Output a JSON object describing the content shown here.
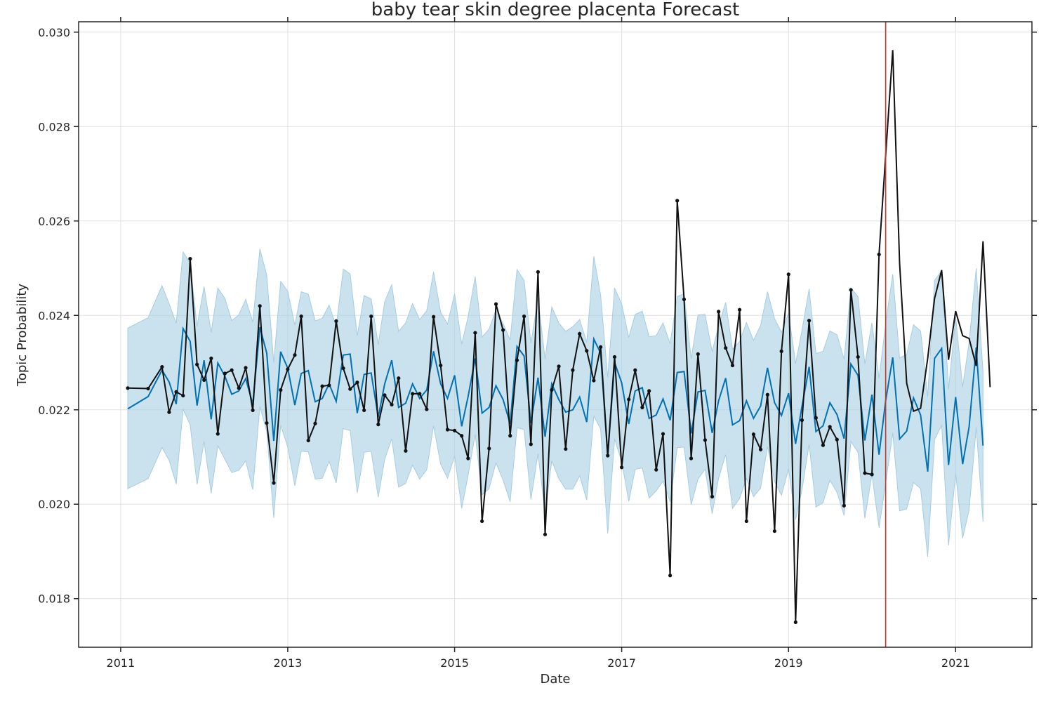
{
  "chart_data": {
    "type": "line",
    "title": "baby tear skin degree placenta Forecast",
    "xlabel": "Date",
    "ylabel": "Topic Probability",
    "x_ticks": [
      "2011",
      "2013",
      "2015",
      "2017",
      "2019",
      "2021"
    ],
    "y_ticks": [
      "0.018",
      "0.020",
      "0.022",
      "0.024",
      "0.026",
      "0.028",
      "0.030"
    ],
    "xlim": [
      "2010-07-01",
      "2021-12-01"
    ],
    "ylim": [
      0.01697,
      0.03022
    ],
    "grid": true,
    "changepoint_date": "2020-03-01",
    "colors": {
      "actual": "#111111",
      "forecast": "#0072b2",
      "interval": "#a6cde2",
      "changepoint": "#c0392b",
      "grid": "#e0e0e0",
      "frame": "#262626"
    },
    "series": [
      {
        "role": "actual",
        "style": "line+markers",
        "x": [
          "2011-02-01",
          "2011-05-01",
          "2011-07-01",
          "2011-08-01",
          "2011-09-01",
          "2011-10-01",
          "2011-11-01",
          "2011-12-01",
          "2012-01-01",
          "2012-02-01",
          "2012-03-01",
          "2012-04-01",
          "2012-05-01",
          "2012-06-01",
          "2012-07-01",
          "2012-08-01",
          "2012-09-01",
          "2012-10-01",
          "2012-11-01",
          "2012-12-01",
          "2013-01-01",
          "2013-02-01",
          "2013-03-01",
          "2013-04-01",
          "2013-05-01",
          "2013-06-01",
          "2013-07-01",
          "2013-08-01",
          "2013-09-01",
          "2013-10-01",
          "2013-11-01",
          "2013-12-01",
          "2014-01-01",
          "2014-02-01",
          "2014-03-01",
          "2014-04-01",
          "2014-05-01",
          "2014-06-01",
          "2014-07-01",
          "2014-08-01",
          "2014-09-01",
          "2014-10-01",
          "2014-11-01",
          "2014-12-01",
          "2015-01-01",
          "2015-02-01",
          "2015-03-01",
          "2015-04-01",
          "2015-05-01",
          "2015-06-01",
          "2015-07-01",
          "2015-08-01",
          "2015-09-01",
          "2015-10-01",
          "2015-11-01",
          "2015-12-01",
          "2016-01-01",
          "2016-02-01",
          "2016-03-01",
          "2016-04-01",
          "2016-05-01",
          "2016-06-01",
          "2016-07-01",
          "2016-08-01",
          "2016-09-01",
          "2016-10-01",
          "2016-11-01",
          "2016-12-01",
          "2017-01-01",
          "2017-02-01",
          "2017-03-01",
          "2017-04-01",
          "2017-05-01",
          "2017-06-01",
          "2017-07-01",
          "2017-08-01",
          "2017-09-01",
          "2017-10-01",
          "2017-11-01",
          "2017-12-01",
          "2018-01-01",
          "2018-02-01",
          "2018-03-01",
          "2018-04-01",
          "2018-05-01",
          "2018-06-01",
          "2018-07-01",
          "2018-08-01",
          "2018-09-01",
          "2018-10-01",
          "2018-11-01",
          "2018-12-01",
          "2019-01-01",
          "2019-02-01",
          "2019-03-01",
          "2019-04-01",
          "2019-05-01",
          "2019-06-01",
          "2019-07-01",
          "2019-08-01",
          "2019-09-01",
          "2019-10-01",
          "2019-11-01",
          "2019-12-01",
          "2020-01-01",
          "2020-02-01"
        ],
        "y": [
          0.02246,
          0.02245,
          0.02291,
          0.02195,
          0.02238,
          0.0223,
          0.0252,
          0.02296,
          0.02263,
          0.02309,
          0.02149,
          0.02277,
          0.02284,
          0.02246,
          0.02289,
          0.02199,
          0.0242,
          0.02172,
          0.02045,
          0.02242,
          0.02286,
          0.02316,
          0.02398,
          0.02135,
          0.02171,
          0.0225,
          0.02252,
          0.02388,
          0.02288,
          0.02244,
          0.02258,
          0.02199,
          0.02398,
          0.02169,
          0.02231,
          0.02211,
          0.02267,
          0.02113,
          0.02234,
          0.02234,
          0.02201,
          0.02397,
          0.02294,
          0.02158,
          0.02156,
          0.02145,
          0.02097,
          0.02363,
          0.01964,
          0.02118,
          0.02424,
          0.02369,
          0.02145,
          0.02305,
          0.02398,
          0.02127,
          0.02492,
          0.01936,
          0.02242,
          0.02292,
          0.02117,
          0.02284,
          0.02361,
          0.02325,
          0.02262,
          0.02333,
          0.02103,
          0.02312,
          0.02078,
          0.02222,
          0.02284,
          0.02205,
          0.0224,
          0.02073,
          0.02149,
          0.01849,
          0.02643,
          0.02434,
          0.02097,
          0.02318,
          0.02136,
          0.02016,
          0.02408,
          0.02331,
          0.02294,
          0.02412,
          0.01964,
          0.02148,
          0.02116,
          0.02232,
          0.01943,
          0.02324,
          0.02487,
          0.0175,
          0.02178,
          0.02389,
          0.02183,
          0.02125,
          0.02164,
          0.02137,
          0.01997,
          0.02454,
          0.02312,
          0.02066,
          0.02063,
          0.02529
        ]
      },
      {
        "role": "actual",
        "style": "line",
        "x": [
          "2020-02-01",
          "2020-04-01",
          "2020-05-01",
          "2020-06-01",
          "2020-07-01",
          "2020-08-01",
          "2020-09-01",
          "2020-10-01",
          "2020-11-01",
          "2020-12-01",
          "2021-01-01",
          "2021-02-01",
          "2021-03-01",
          "2021-04-01",
          "2021-05-01",
          "2021-06-01"
        ],
        "y": [
          0.02529,
          0.02962,
          0.0251,
          0.02256,
          0.02197,
          0.02203,
          0.02309,
          0.02436,
          0.02496,
          0.02306,
          0.02409,
          0.02357,
          0.02351,
          0.02293,
          0.02557,
          0.02248
        ]
      },
      {
        "role": "forecast",
        "style": "line",
        "x": [
          "2011-02-01",
          "2011-05-01",
          "2011-07-01",
          "2011-08-01",
          "2011-09-01",
          "2011-10-01",
          "2011-11-01",
          "2011-12-01",
          "2012-01-01",
          "2012-02-01",
          "2012-03-01",
          "2012-04-01",
          "2012-05-01",
          "2012-06-01",
          "2012-07-01",
          "2012-08-01",
          "2012-09-01",
          "2012-10-01",
          "2012-11-01",
          "2012-12-01",
          "2013-01-01",
          "2013-02-01",
          "2013-03-01",
          "2013-04-01",
          "2013-05-01",
          "2013-06-01",
          "2013-07-01",
          "2013-08-01",
          "2013-09-01",
          "2013-10-01",
          "2013-11-01",
          "2013-12-01",
          "2014-01-01",
          "2014-02-01",
          "2014-03-01",
          "2014-04-01",
          "2014-05-01",
          "2014-06-01",
          "2014-07-01",
          "2014-08-01",
          "2014-09-01",
          "2014-10-01",
          "2014-11-01",
          "2014-12-01",
          "2015-01-01",
          "2015-02-01",
          "2015-03-01",
          "2015-04-01",
          "2015-05-01",
          "2015-06-01",
          "2015-07-01",
          "2015-08-01",
          "2015-09-01",
          "2015-10-01",
          "2015-11-01",
          "2015-12-01",
          "2016-01-01",
          "2016-02-01",
          "2016-03-01",
          "2016-04-01",
          "2016-05-01",
          "2016-06-01",
          "2016-07-01",
          "2016-08-01",
          "2016-09-01",
          "2016-10-01",
          "2016-11-01",
          "2016-12-01",
          "2017-01-01",
          "2017-02-01",
          "2017-03-01",
          "2017-04-01",
          "2017-05-01",
          "2017-06-01",
          "2017-07-01",
          "2017-08-01",
          "2017-09-01",
          "2017-10-01",
          "2017-11-01",
          "2017-12-01",
          "2018-01-01",
          "2018-02-01",
          "2018-03-01",
          "2018-04-01",
          "2018-05-01",
          "2018-06-01",
          "2018-07-01",
          "2018-08-01",
          "2018-09-01",
          "2018-10-01",
          "2018-11-01",
          "2018-12-01",
          "2019-01-01",
          "2019-02-01",
          "2019-03-01",
          "2019-04-01",
          "2019-05-01",
          "2019-06-01",
          "2019-07-01",
          "2019-08-01",
          "2019-09-01",
          "2019-10-01",
          "2019-11-01",
          "2019-12-01",
          "2020-01-01",
          "2020-02-01",
          "2020-03-01",
          "2020-04-01",
          "2020-05-01",
          "2020-06-01",
          "2020-07-01",
          "2020-08-01",
          "2020-09-01",
          "2020-10-01",
          "2020-11-01",
          "2020-12-01",
          "2021-01-01",
          "2021-02-01",
          "2021-03-01",
          "2021-04-01",
          "2021-05-01"
        ],
        "y": [
          0.02202,
          0.02228,
          0.02284,
          0.02259,
          0.02212,
          0.02372,
          0.02345,
          0.02209,
          0.02305,
          0.0218,
          0.02299,
          0.02271,
          0.02233,
          0.0224,
          0.02266,
          0.02212,
          0.02375,
          0.0232,
          0.02134,
          0.02323,
          0.02288,
          0.0221,
          0.02277,
          0.02283,
          0.02217,
          0.02224,
          0.02255,
          0.02218,
          0.02316,
          0.02318,
          0.02193,
          0.02275,
          0.02278,
          0.02184,
          0.02255,
          0.02305,
          0.02205,
          0.02214,
          0.02255,
          0.02224,
          0.02242,
          0.02324,
          0.02255,
          0.02224,
          0.02273,
          0.02165,
          0.02228,
          0.02309,
          0.02193,
          0.02205,
          0.02251,
          0.02222,
          0.0217,
          0.02334,
          0.02314,
          0.02172,
          0.02268,
          0.02143,
          0.02255,
          0.02222,
          0.02195,
          0.022,
          0.02227,
          0.02174,
          0.0235,
          0.0232,
          0.021,
          0.023,
          0.02257,
          0.0217,
          0.0224,
          0.02247,
          0.02182,
          0.02189,
          0.02223,
          0.02178,
          0.02279,
          0.02281,
          0.0215,
          0.02238,
          0.02241,
          0.02151,
          0.02219,
          0.02267,
          0.02168,
          0.02177,
          0.02219,
          0.02182,
          0.02208,
          0.02289,
          0.02215,
          0.02188,
          0.02235,
          0.02128,
          0.02208,
          0.02291,
          0.02154,
          0.02166,
          0.02215,
          0.0219,
          0.02139,
          0.02297,
          0.02273,
          0.02135,
          0.02232,
          0.02105,
          0.02219,
          0.02311,
          0.02138,
          0.02155,
          0.02225,
          0.02189,
          0.02069,
          0.02309,
          0.0233,
          0.02083,
          0.02227,
          0.02085,
          0.02164,
          0.02332,
          0.02124
        ]
      }
    ],
    "interval": {
      "x": [
        "2011-02-01",
        "2011-05-01",
        "2011-07-01",
        "2011-08-01",
        "2011-09-01",
        "2011-10-01",
        "2011-11-01",
        "2011-12-01",
        "2012-01-01",
        "2012-02-01",
        "2012-03-01",
        "2012-04-01",
        "2012-05-01",
        "2012-06-01",
        "2012-07-01",
        "2012-08-01",
        "2012-09-01",
        "2012-10-01",
        "2012-11-01",
        "2012-12-01",
        "2013-01-01",
        "2013-02-01",
        "2013-03-01",
        "2013-04-01",
        "2013-05-01",
        "2013-06-01",
        "2013-07-01",
        "2013-08-01",
        "2013-09-01",
        "2013-10-01",
        "2013-11-01",
        "2013-12-01",
        "2014-01-01",
        "2014-02-01",
        "2014-03-01",
        "2014-04-01",
        "2014-05-01",
        "2014-06-01",
        "2014-07-01",
        "2014-08-01",
        "2014-09-01",
        "2014-10-01",
        "2014-11-01",
        "2014-12-01",
        "2015-01-01",
        "2015-02-01",
        "2015-03-01",
        "2015-04-01",
        "2015-05-01",
        "2015-06-01",
        "2015-07-01",
        "2015-08-01",
        "2015-09-01",
        "2015-10-01",
        "2015-11-01",
        "2015-12-01",
        "2016-01-01",
        "2016-02-01",
        "2016-03-01",
        "2016-04-01",
        "2016-05-01",
        "2016-06-01",
        "2016-07-01",
        "2016-08-01",
        "2016-09-01",
        "2016-10-01",
        "2016-11-01",
        "2016-12-01",
        "2017-01-01",
        "2017-02-01",
        "2017-03-01",
        "2017-04-01",
        "2017-05-01",
        "2017-06-01",
        "2017-07-01",
        "2017-08-01",
        "2017-09-01",
        "2017-10-01",
        "2017-11-01",
        "2017-12-01",
        "2018-01-01",
        "2018-02-01",
        "2018-03-01",
        "2018-04-01",
        "2018-05-01",
        "2018-06-01",
        "2018-07-01",
        "2018-08-01",
        "2018-09-01",
        "2018-10-01",
        "2018-11-01",
        "2018-12-01",
        "2019-01-01",
        "2019-02-01",
        "2019-03-01",
        "2019-04-01",
        "2019-05-01",
        "2019-06-01",
        "2019-07-01",
        "2019-08-01",
        "2019-09-01",
        "2019-10-01",
        "2019-11-01",
        "2019-12-01",
        "2020-01-01",
        "2020-02-01",
        "2020-03-01",
        "2020-04-01",
        "2020-05-01",
        "2020-06-01",
        "2020-07-01",
        "2020-08-01",
        "2020-09-01",
        "2020-10-01",
        "2020-11-01",
        "2020-12-01",
        "2021-01-01",
        "2021-02-01",
        "2021-03-01",
        "2021-04-01",
        "2021-05-01"
      ],
      "upper": [
        0.02373,
        0.02395,
        0.02463,
        0.02425,
        0.02383,
        0.02534,
        0.02511,
        0.02377,
        0.02461,
        0.02364,
        0.02458,
        0.02436,
        0.02389,
        0.02401,
        0.02434,
        0.02386,
        0.02541,
        0.02485,
        0.023,
        0.02472,
        0.02451,
        0.02379,
        0.0245,
        0.02445,
        0.02388,
        0.02394,
        0.02422,
        0.02376,
        0.02498,
        0.02488,
        0.02357,
        0.02442,
        0.02435,
        0.02338,
        0.02429,
        0.02465,
        0.02366,
        0.02384,
        0.02425,
        0.02391,
        0.0241,
        0.02492,
        0.02407,
        0.02382,
        0.02446,
        0.02339,
        0.02397,
        0.02482,
        0.02354,
        0.02371,
        0.02412,
        0.02383,
        0.02348,
        0.02497,
        0.02474,
        0.02341,
        0.02436,
        0.02307,
        0.02418,
        0.02384,
        0.02366,
        0.02376,
        0.02391,
        0.02343,
        0.02525,
        0.02443,
        0.02268,
        0.02458,
        0.02424,
        0.02353,
        0.02402,
        0.02409,
        0.02355,
        0.02357,
        0.02384,
        0.0234,
        0.0244,
        0.02446,
        0.02308,
        0.02401,
        0.02402,
        0.02323,
        0.02378,
        0.02427,
        0.02328,
        0.02345,
        0.02385,
        0.02347,
        0.02379,
        0.0245,
        0.02393,
        0.02364,
        0.02405,
        0.02298,
        0.02369,
        0.02456,
        0.02319,
        0.02324,
        0.02367,
        0.02359,
        0.02307,
        0.02458,
        0.0244,
        0.02297,
        0.02384,
        0.02267,
        0.02383,
        0.02487,
        0.0231,
        0.02317,
        0.0238,
        0.02367,
        0.02228,
        0.02474,
        0.02495,
        0.02243,
        0.02397,
        0.02248,
        0.02343,
        0.025,
        0.02281
      ],
      "lower": [
        0.02033,
        0.02054,
        0.0212,
        0.02093,
        0.02043,
        0.02201,
        0.02168,
        0.02042,
        0.02133,
        0.02023,
        0.02124,
        0.02095,
        0.02067,
        0.02072,
        0.02092,
        0.02031,
        0.02207,
        0.02154,
        0.01971,
        0.02167,
        0.02121,
        0.02039,
        0.02112,
        0.02111,
        0.02053,
        0.02055,
        0.02091,
        0.02045,
        0.0216,
        0.02156,
        0.02024,
        0.0211,
        0.02112,
        0.02015,
        0.02095,
        0.02139,
        0.02036,
        0.02044,
        0.02083,
        0.02053,
        0.02073,
        0.02166,
        0.02085,
        0.02055,
        0.02102,
        0.01991,
        0.02061,
        0.02148,
        0.0202,
        0.02033,
        0.02088,
        0.02051,
        0.02005,
        0.02162,
        0.02158,
        0.0201,
        0.02107,
        0.0198,
        0.02092,
        0.02054,
        0.02032,
        0.02032,
        0.0206,
        0.02009,
        0.02187,
        0.02159,
        0.01938,
        0.02138,
        0.0209,
        0.02006,
        0.02074,
        0.02077,
        0.02013,
        0.02028,
        0.02049,
        0.02005,
        0.0212,
        0.02121,
        0.01999,
        0.02053,
        0.02074,
        0.0198,
        0.02055,
        0.02105,
        0.01991,
        0.02012,
        0.02055,
        0.02016,
        0.02034,
        0.02122,
        0.02048,
        0.02019,
        0.02075,
        0.01967,
        0.02031,
        0.02127,
        0.01994,
        0.02003,
        0.02051,
        0.02025,
        0.01976,
        0.02133,
        0.0211,
        0.0197,
        0.02063,
        0.0195,
        0.02044,
        0.02151,
        0.01986,
        0.0199,
        0.02046,
        0.02033,
        0.01889,
        0.02137,
        0.02167,
        0.01913,
        0.02065,
        0.01928,
        0.01988,
        0.02163,
        0.01963
      ]
    }
  }
}
